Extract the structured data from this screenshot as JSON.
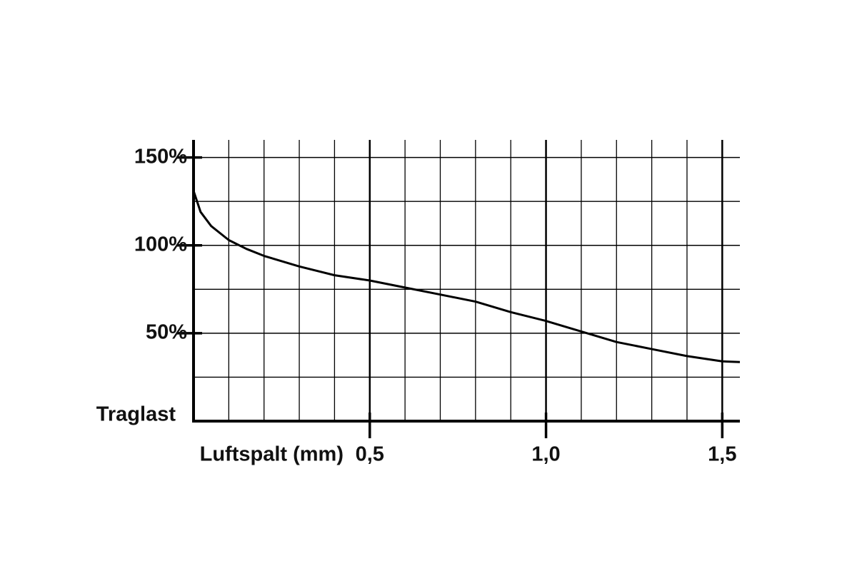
{
  "chart_data": {
    "type": "line",
    "x_label": "Luftspalt (mm)",
    "y_label": "Traglast",
    "x": [
      0,
      0.02,
      0.05,
      0.1,
      0.15,
      0.2,
      0.3,
      0.4,
      0.5,
      0.6,
      0.7,
      0.8,
      0.9,
      1.0,
      1.1,
      1.2,
      1.3,
      1.4,
      1.5,
      1.55
    ],
    "series": [
      {
        "color": "#000000",
        "values": [
          131,
          119,
          111,
          103,
          98,
          94,
          88,
          83,
          80,
          76,
          72,
          68,
          62,
          57,
          51,
          45,
          41,
          37,
          34,
          33.6
        ]
      }
    ],
    "xlim": [
      0,
      1.55
    ],
    "ylim": [
      0,
      160
    ],
    "xticks": [
      {
        "value": 0.5,
        "label": "0,5"
      },
      {
        "value": 1.0,
        "label": "1,0"
      },
      {
        "value": 1.5,
        "label": "1,5"
      }
    ],
    "yticks": [
      {
        "value": 50,
        "label": "50%"
      },
      {
        "value": 100,
        "label": "100%"
      },
      {
        "value": 150,
        "label": "150%"
      }
    ],
    "x_minor_grid": [
      0.1,
      0.2,
      0.3,
      0.4,
      0.6,
      0.7,
      0.8,
      0.9,
      1.1,
      1.2,
      1.3,
      1.4
    ],
    "y_minor_grid": [
      25,
      75,
      125
    ],
    "grid": true
  }
}
